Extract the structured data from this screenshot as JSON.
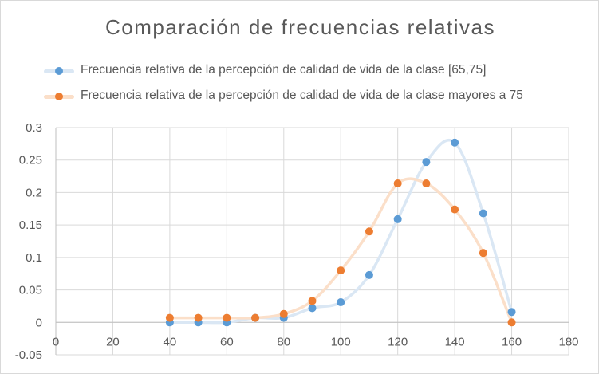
{
  "chart_data": {
    "type": "scatter",
    "title": "Comparación  de frecuencias  relativas",
    "xlabel": "",
    "ylabel": "",
    "xlim": [
      0,
      180
    ],
    "ylim": [
      -0.05,
      0.3
    ],
    "x_ticks": [
      0,
      20,
      40,
      60,
      80,
      100,
      120,
      140,
      160,
      180
    ],
    "y_ticks": [
      -0.05,
      0,
      0.05,
      0.1,
      0.15,
      0.2,
      0.25,
      0.3
    ],
    "x_tick_labels": [
      "0",
      "20",
      "40",
      "60",
      "80",
      "100",
      "120",
      "140",
      "160",
      "180"
    ],
    "y_tick_labels": [
      "-0.05",
      "0",
      "0.05",
      "0.1",
      "0.15",
      "0.2",
      "0.25",
      "0.3"
    ],
    "grid": true,
    "smooth_lines": true,
    "legend_position": "top",
    "series": [
      {
        "name": "Frecuencia relativa de la percepción de calidad de vida de la clase [65,75]",
        "color": "#5b9bd5",
        "line_color": "#dae7f4",
        "x": [
          40,
          50,
          60,
          70,
          80,
          90,
          100,
          110,
          120,
          130,
          140,
          150,
          160
        ],
        "y": [
          0,
          0,
          0,
          0.007,
          0.007,
          0.022,
          0.031,
          0.073,
          0.159,
          0.247,
          0.277,
          0.168,
          0.016
        ]
      },
      {
        "name": "Frecuencia relativa de la percepción de calidad de vida de la clase mayores a 75",
        "color": "#ed7d31",
        "line_color": "#fbdfc9",
        "x": [
          40,
          50,
          60,
          70,
          80,
          90,
          100,
          110,
          120,
          130,
          140,
          150,
          160
        ],
        "y": [
          0.007,
          0.007,
          0.007,
          0.007,
          0.013,
          0.033,
          0.08,
          0.14,
          0.214,
          0.214,
          0.174,
          0.107,
          0
        ]
      }
    ]
  }
}
